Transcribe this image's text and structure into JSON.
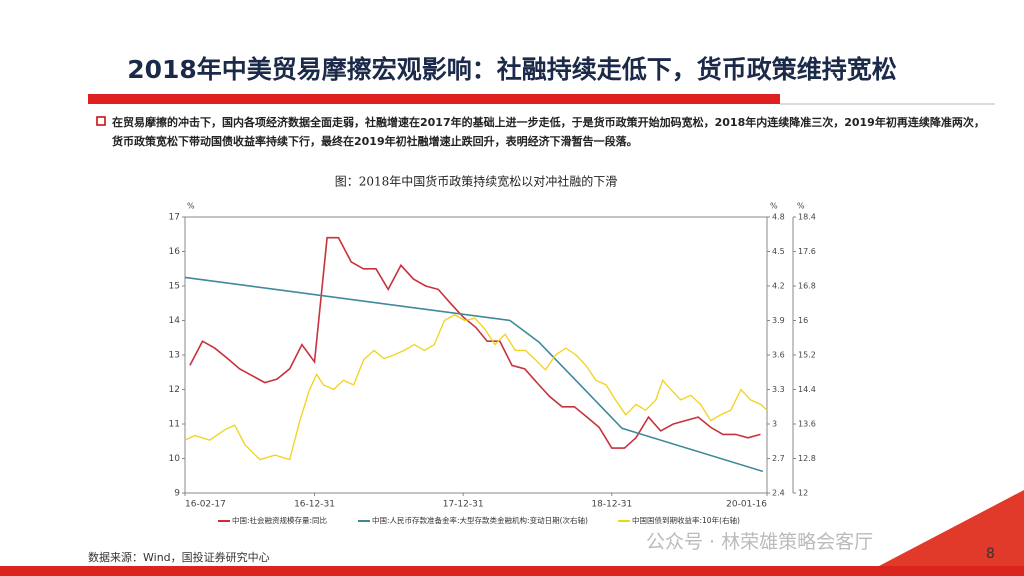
{
  "title": "2018年中美贸易摩擦宏观影响：社融持续走低下，货币政策维持宽松",
  "bullet": "在贸易摩擦的冲击下，国内各项经济数据全面走弱，社融增速在2017年的基础上进一步走低，于是货币政策开始加码宽松，2018年内连续降准三次，2019年初再连续降准两次，货币政策宽松下带动国债收益率持续下行，最终在2019年初社融增速止跌回升，表明经济下滑暂告一段落。",
  "source": "数据来源：Wind，国投证券研究中心",
  "watermark": "公众号 · 林荣雄策略会客厅",
  "page": "8",
  "chart_data": {
    "type": "line",
    "title": "图：2018年中国货币政策持续宽松以对冲社融的下滑",
    "ylabel": "%",
    "y2label": "%",
    "y3label": "%",
    "xlim": [
      "2016-02-17",
      "2020-01-16"
    ],
    "xticks": [
      {
        "value": "2016-02-17",
        "label": "16-02-17"
      },
      {
        "value": "2016-12-31",
        "label": "16-12-31"
      },
      {
        "value": "2017-12-31",
        "label": "17-12-31"
      },
      {
        "value": "2018-12-31",
        "label": "18-12-31"
      },
      {
        "value": "2020-01-16",
        "label": "20-01-16"
      }
    ],
    "ylim": [
      9,
      17
    ],
    "yticks": [
      9,
      10,
      11,
      12,
      13,
      14,
      15,
      16,
      17
    ],
    "y2lim": [
      2.4,
      4.8
    ],
    "y2ticks": [
      2.4,
      2.7,
      3,
      3.3,
      3.6,
      3.9,
      4.2,
      4.5,
      4.8
    ],
    "y3lim": [
      12,
      18.4
    ],
    "y3ticks": [
      12,
      12.8,
      13.6,
      14.4,
      15.2,
      16,
      16.8,
      17.6,
      18.4
    ],
    "series": [
      {
        "name": "中国:社会融资规模存量:同比",
        "color": "#c8323c",
        "axis": "y",
        "x": [
          "2016-02-29",
          "2016-03-31",
          "2016-04-30",
          "2016-05-31",
          "2016-06-30",
          "2016-07-31",
          "2016-08-31",
          "2016-09-30",
          "2016-10-31",
          "2016-11-30",
          "2016-12-31",
          "2017-01-31",
          "2017-02-28",
          "2017-03-31",
          "2017-04-30",
          "2017-05-31",
          "2017-06-30",
          "2017-07-31",
          "2017-08-31",
          "2017-09-30",
          "2017-10-31",
          "2017-11-30",
          "2017-12-31",
          "2018-01-31",
          "2018-02-28",
          "2018-03-31",
          "2018-04-30",
          "2018-05-31",
          "2018-06-30",
          "2018-07-31",
          "2018-08-31",
          "2018-09-30",
          "2018-10-31",
          "2018-11-30",
          "2018-12-31",
          "2019-01-31",
          "2019-02-28",
          "2019-03-31",
          "2019-04-30",
          "2019-05-31",
          "2019-06-30",
          "2019-07-31",
          "2019-08-31",
          "2019-09-30",
          "2019-10-31",
          "2019-11-30",
          "2019-12-31"
        ],
        "values": [
          12.7,
          13.4,
          13.2,
          12.9,
          12.6,
          12.4,
          12.2,
          12.3,
          12.6,
          13.3,
          12.8,
          16.4,
          16.4,
          15.7,
          15.5,
          15.5,
          14.9,
          15.6,
          15.2,
          15.0,
          14.9,
          14.5,
          14.1,
          13.8,
          13.4,
          13.4,
          12.7,
          12.6,
          12.2,
          11.8,
          11.5,
          11.5,
          11.2,
          10.9,
          10.3,
          10.3,
          10.6,
          11.2,
          10.8,
          11.0,
          11.1,
          11.2,
          10.9,
          10.7,
          10.7,
          10.6,
          10.7
        ]
      },
      {
        "name": "中国:人民币存款准备金率:大型存款类金融机构:变动日期(次右轴)",
        "color": "#3f8a9a",
        "axis": "y3",
        "x": [
          "2016-02-17",
          "2018-04-25",
          "2018-07-05",
          "2018-10-15",
          "2019-01-25",
          "2020-01-06"
        ],
        "values": [
          17.0,
          16.0,
          15.5,
          14.5,
          13.5,
          12.5
        ]
      },
      {
        "name": "中国国债到期收益率:10年(右轴)",
        "color": "#f2d21b",
        "axis": "y2",
        "x": [
          "2016-02-17",
          "2016-03-12",
          "2016-04-18",
          "2016-05-25",
          "2016-06-18",
          "2016-07-13",
          "2016-08-19",
          "2016-09-25",
          "2016-10-31",
          "2016-11-25",
          "2016-12-19",
          "2017-01-05",
          "2017-01-22",
          "2017-02-16",
          "2017-03-12",
          "2017-04-06",
          "2017-05-01",
          "2017-05-26",
          "2017-06-19",
          "2017-07-14",
          "2017-08-08",
          "2017-09-02",
          "2017-09-27",
          "2017-10-21",
          "2017-11-15",
          "2017-12-10",
          "2018-01-04",
          "2018-01-29",
          "2018-02-23",
          "2018-03-19",
          "2018-04-13",
          "2018-05-08",
          "2018-06-02",
          "2018-06-26",
          "2018-07-21",
          "2018-08-15",
          "2018-09-09",
          "2018-10-04",
          "2018-10-28",
          "2018-11-22",
          "2018-12-17",
          "2019-01-09",
          "2019-02-03",
          "2019-02-28",
          "2019-03-24",
          "2019-04-18",
          "2019-05-05",
          "2019-05-25",
          "2019-06-18",
          "2019-07-13",
          "2019-08-06",
          "2019-08-31",
          "2019-09-24",
          "2019-10-19",
          "2019-11-13",
          "2019-12-07",
          "2020-01-01",
          "2020-01-16"
        ],
        "values": [
          2.86,
          2.9,
          2.86,
          2.95,
          2.99,
          2.82,
          2.69,
          2.73,
          2.69,
          3.03,
          3.3,
          3.43,
          3.34,
          3.3,
          3.38,
          3.34,
          3.56,
          3.64,
          3.57,
          3.6,
          3.64,
          3.69,
          3.64,
          3.69,
          3.9,
          3.95,
          3.9,
          3.92,
          3.82,
          3.69,
          3.78,
          3.64,
          3.64,
          3.56,
          3.47,
          3.6,
          3.66,
          3.6,
          3.51,
          3.38,
          3.34,
          3.21,
          3.08,
          3.17,
          3.12,
          3.21,
          3.38,
          3.3,
          3.21,
          3.25,
          3.17,
          3.03,
          3.08,
          3.12,
          3.3,
          3.21,
          3.17,
          3.12
        ]
      }
    ]
  }
}
